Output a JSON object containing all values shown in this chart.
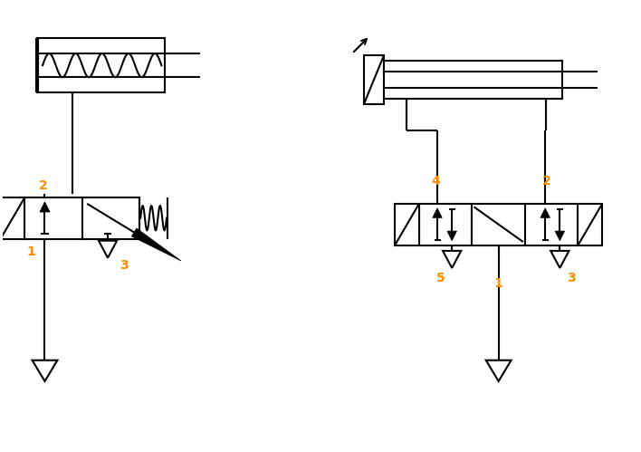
{
  "line_color": "#000000",
  "label_color": "#FF8C00",
  "lw": 1.5,
  "figsize": [
    7.08,
    4.99
  ],
  "dpi": 100,
  "bg_color": "#ffffff",
  "xlim": [
    0,
    10
  ],
  "ylim": [
    0,
    7
  ]
}
